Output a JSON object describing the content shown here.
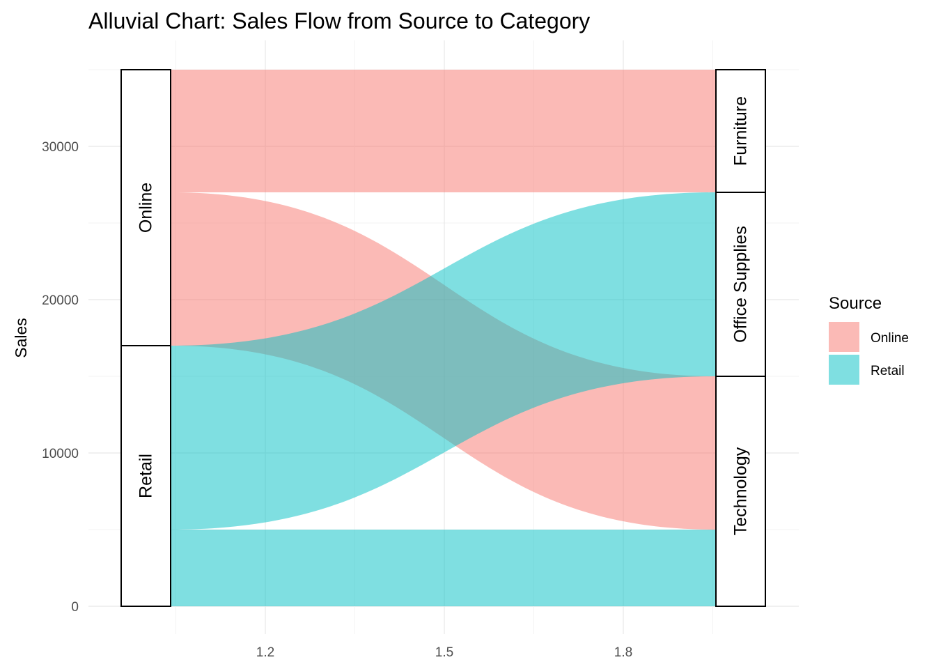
{
  "chart_data": {
    "type": "alluvial",
    "title": "Alluvial Chart: Sales Flow from Source to Category",
    "ylabel": "Sales",
    "xlabel": "",
    "ylim": [
      0,
      35000
    ],
    "y_ticks": [
      0,
      10000,
      20000,
      30000
    ],
    "x_ticks": [
      "1.2",
      "1.5",
      "1.8"
    ],
    "grid": true,
    "legend": {
      "title": "Source",
      "position": "right",
      "entries": [
        {
          "name": "Online",
          "color": "#F8766D"
        },
        {
          "name": "Retail",
          "color": "#00BFC4"
        }
      ]
    },
    "axes": [
      {
        "name": "Source",
        "strata": [
          {
            "label": "Online",
            "value": 18000
          },
          {
            "label": "Retail",
            "value": 17000
          }
        ]
      },
      {
        "name": "Category",
        "strata": [
          {
            "label": "Furniture",
            "value": 8000
          },
          {
            "label": "Office Supplies",
            "value": 12000
          },
          {
            "label": "Technology",
            "value": 15000
          }
        ]
      }
    ],
    "flows": [
      {
        "source": "Online",
        "category": "Furniture",
        "value": 8000
      },
      {
        "source": "Online",
        "category": "Technology",
        "value": 10000
      },
      {
        "source": "Retail",
        "category": "Office Supplies",
        "value": 12000
      },
      {
        "source": "Retail",
        "category": "Technology",
        "value": 5000
      }
    ]
  }
}
